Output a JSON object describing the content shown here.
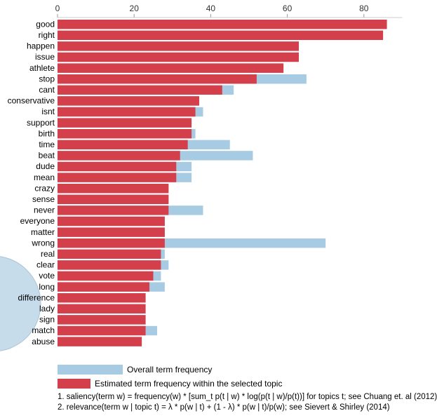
{
  "chart_data": {
    "type": "bar",
    "orientation": "horizontal",
    "xlim": [
      0,
      90
    ],
    "x_ticks": [
      "0",
      "20",
      "40",
      "60",
      "80"
    ],
    "x_tick_values": [
      0,
      20,
      40,
      60,
      80
    ],
    "axis_position": "top",
    "grid": false,
    "legend_position": "bottom",
    "categories": [
      "good",
      "right",
      "happen",
      "issue",
      "athlete",
      "stop",
      "cant",
      "conservative",
      "isnt",
      "support",
      "birth",
      "time",
      "beat",
      "dude",
      "mean",
      "crazy",
      "sense",
      "never",
      "everyone",
      "matter",
      "wrong",
      "real",
      "clear",
      "vote",
      "long",
      "difference",
      "lady",
      "sign",
      "match",
      "abuse"
    ],
    "series": [
      {
        "name": "Overall term frequency",
        "color": "#a6cbe3",
        "values": [
          86,
          85,
          63,
          63,
          59,
          65,
          46,
          37,
          38,
          35,
          36,
          45,
          51,
          35,
          35,
          29,
          29,
          38,
          28,
          28,
          70,
          28,
          29,
          27,
          28,
          23,
          23,
          23,
          26,
          22
        ]
      },
      {
        "name": "Estimated term frequency within the selected topic",
        "color": "#d43f4c",
        "values": [
          86,
          85,
          63,
          63,
          59,
          52,
          43,
          37,
          36,
          35,
          35,
          34,
          32,
          31,
          31,
          29,
          29,
          29,
          28,
          28,
          28,
          27,
          27,
          25,
          24,
          23,
          23,
          23,
          23,
          22
        ]
      }
    ]
  },
  "legend": {
    "overall_label": "Overall term frequency",
    "topic_label": "Estimated term frequency within the selected topic"
  },
  "notes": {
    "saliency": "1. saliency(term w) = frequency(w) * [sum_t p(t | w) * log(p(t | w)/p(t))] for topics t; see Chuang et. al (2012)",
    "relevance": "2. relevance(term w | topic t) = λ * p(w | t) + (1 - λ) * p(w | t)/p(w); see Sievert & Shirley (2014)"
  }
}
